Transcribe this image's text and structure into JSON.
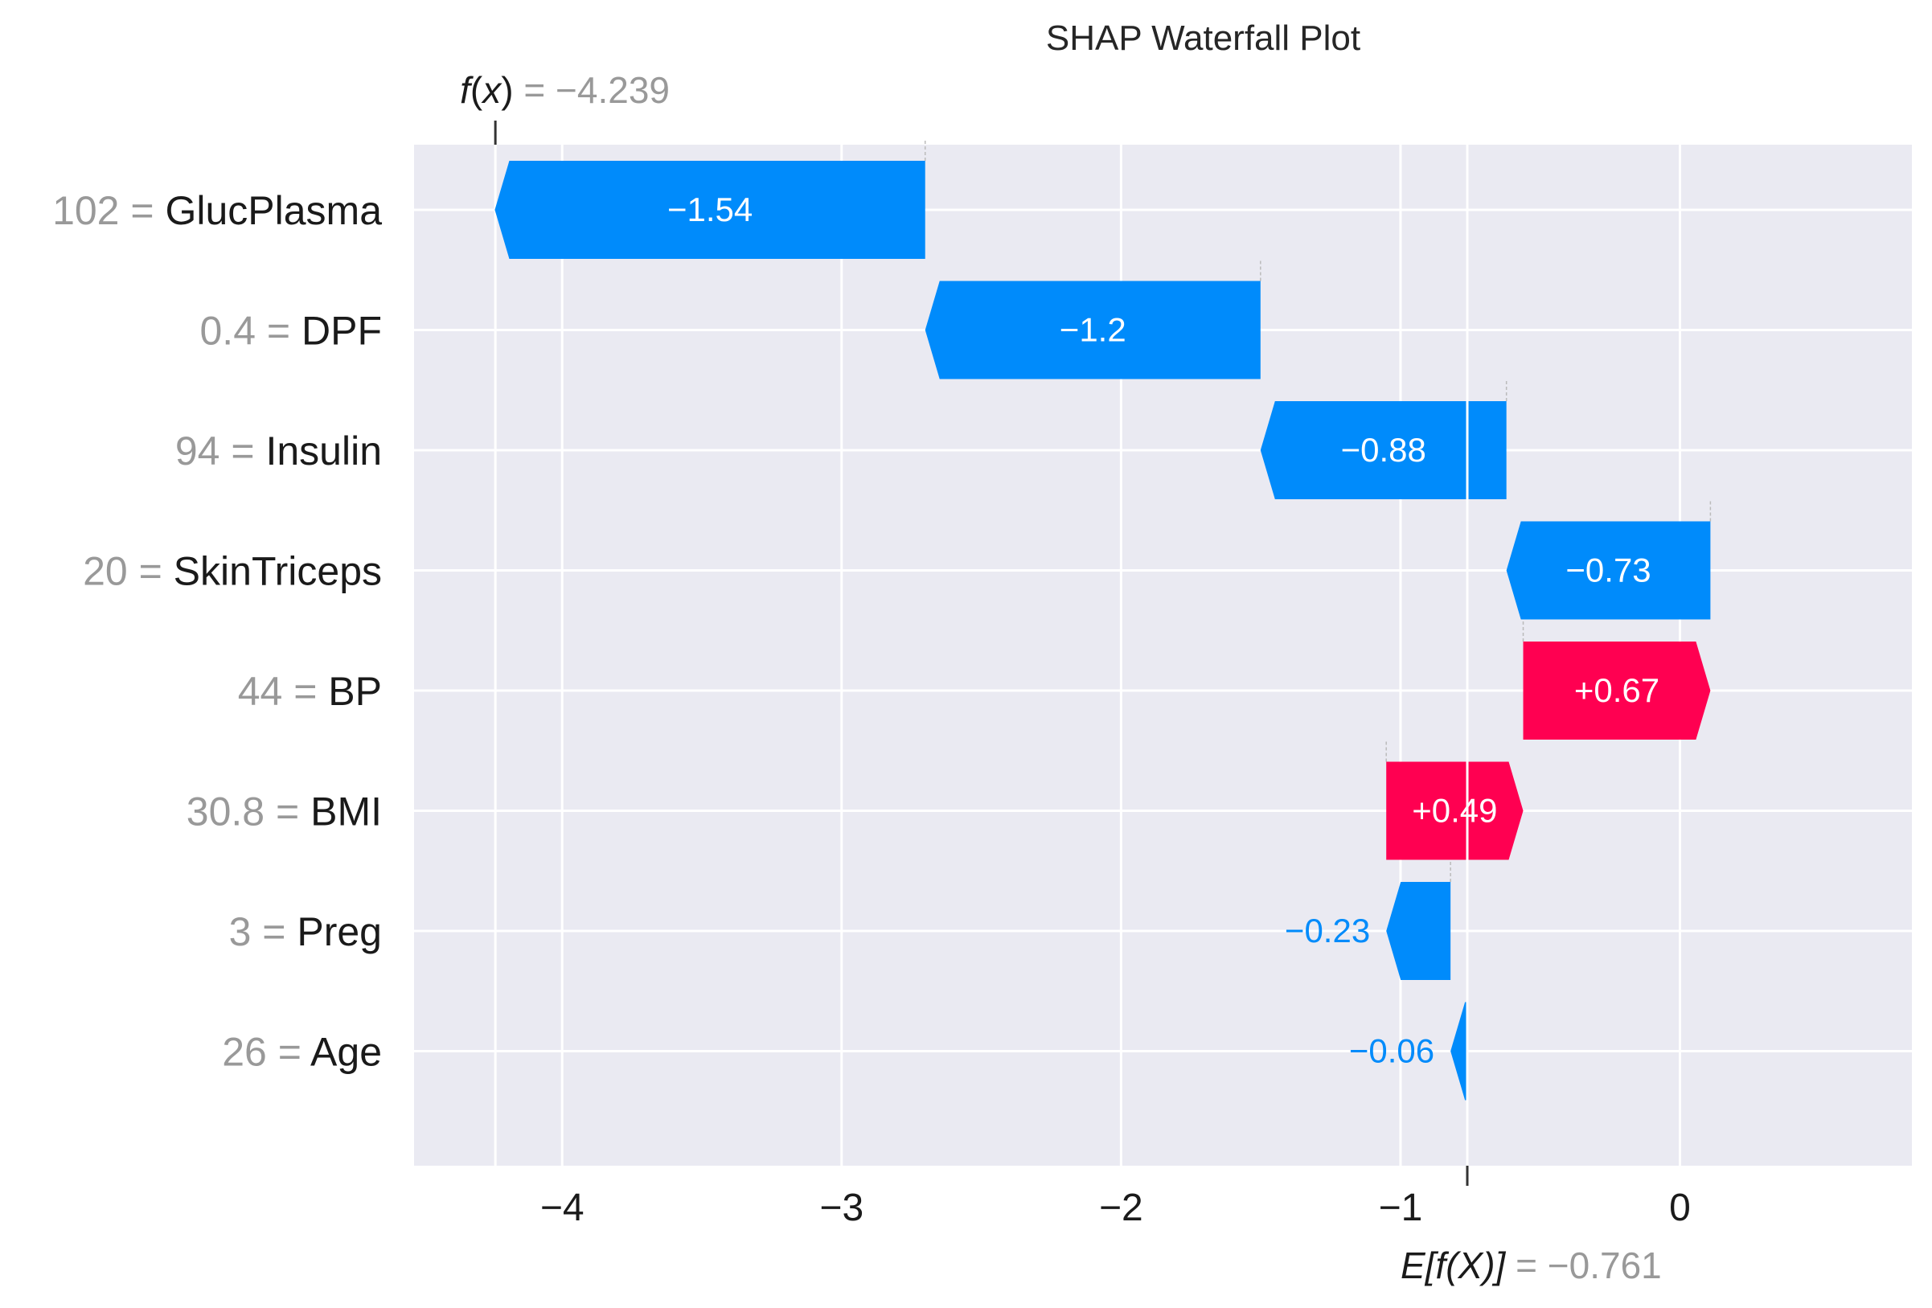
{
  "chart_data": {
    "type": "bar",
    "subtype": "waterfall",
    "title": "SHAP Waterfall Plot",
    "xlim": [
      -4.53,
      0.83
    ],
    "xticks": [
      -4,
      -3,
      -2,
      -1,
      0
    ],
    "xtick_labels": [
      "−4",
      "−3",
      "−2",
      "−1",
      "0"
    ],
    "base_value": -0.761,
    "output_value": -4.239,
    "fx_label": {
      "fn": "f",
      "var": "x",
      "value": "= −4.239"
    },
    "efx_label": {
      "expr": "E[f(X)]",
      "value": "= −0.761"
    },
    "features": [
      {
        "value": "102",
        "name": "GlucPlasma",
        "shap": -1.54,
        "label": "−1.54"
      },
      {
        "value": "0.4",
        "name": "DPF",
        "shap": -1.2,
        "label": "−1.2"
      },
      {
        "value": "94",
        "name": "Insulin",
        "shap": -0.88,
        "label": "−0.88"
      },
      {
        "value": "20",
        "name": "SkinTriceps",
        "shap": -0.73,
        "label": "−0.73"
      },
      {
        "value": "44",
        "name": "BP",
        "shap": 0.67,
        "label": "+0.67"
      },
      {
        "value": "30.8",
        "name": "BMI",
        "shap": 0.49,
        "label": "+0.49"
      },
      {
        "value": "3",
        "name": "Preg",
        "shap": -0.23,
        "label": "−0.23"
      },
      {
        "value": "26",
        "name": "Age",
        "shap": -0.06,
        "label": "−0.06"
      }
    ],
    "colors": {
      "negative": "#008bfb",
      "positive": "#ff0051",
      "background": "#eaeaf2",
      "grid": "#ffffff"
    },
    "grid": true
  }
}
